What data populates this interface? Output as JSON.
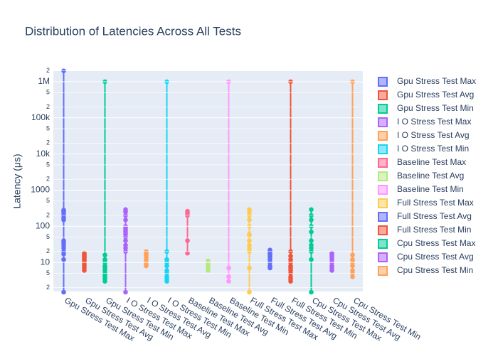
{
  "chart_data": {
    "type": "box",
    "title": "Distribution of Latencies Across All Tests",
    "y_label": "Latency (μs)",
    "log_y": true,
    "grid": true,
    "ylim": [
      1.57,
      1970000
    ],
    "yticks": [
      2,
      5,
      10,
      {
        "value": 20,
        "label": "2"
      },
      {
        "value": 50,
        "label": "5"
      },
      100,
      {
        "value": 200,
        "label": "2"
      },
      {
        "value": 500,
        "label": "5"
      },
      1000,
      {
        "value": 2000,
        "label": "2"
      },
      {
        "value": 5000,
        "label": "5"
      },
      {
        "value": 10000,
        "label": "10k"
      },
      {
        "value": 20000,
        "label": "2"
      },
      {
        "value": 50000,
        "label": "5"
      },
      {
        "value": 100000,
        "label": "100k"
      },
      {
        "value": 200000,
        "label": "2"
      },
      {
        "value": 500000,
        "label": "5"
      },
      {
        "value": 1000000,
        "label": "1M"
      },
      {
        "value": 2000000,
        "label": "2"
      }
    ],
    "series": [
      {
        "name": "Gpu Stress Test Max",
        "color": "#636efa",
        "values": [
          1.5,
          12,
          17,
          20,
          25,
          30,
          35,
          40,
          150,
          170,
          200,
          230,
          260,
          280,
          2000000
        ]
      },
      {
        "name": "Gpu Stress Test Avg",
        "color": "#EF553B",
        "values": [
          6,
          7,
          8,
          9,
          10,
          11,
          12,
          13,
          14,
          15,
          16,
          17,
          18
        ]
      },
      {
        "name": "Gpu Stress Test Min",
        "color": "#00cc96",
        "values": [
          3,
          3.5,
          4,
          4.5,
          5,
          6,
          7,
          8,
          10,
          12,
          16,
          1000000
        ]
      },
      {
        "name": "I O Stress Test Max",
        "color": "#ab63fa",
        "values": [
          1.5,
          20,
          25,
          30,
          40,
          50,
          60,
          70,
          80,
          90,
          100,
          150,
          200,
          250,
          290
        ]
      },
      {
        "name": "I O Stress Test Avg",
        "color": "#FFA15A",
        "values": [
          8,
          9,
          10,
          12,
          14,
          16,
          18,
          20
        ]
      },
      {
        "name": "I O Stress Test Min",
        "color": "#19d3f3",
        "values": [
          3,
          3.5,
          4,
          5,
          6,
          8,
          10,
          12,
          20,
          1000000
        ]
      },
      {
        "name": "Baseline Test Max",
        "color": "#FF6692",
        "values": [
          18,
          40,
          200,
          230,
          260
        ]
      },
      {
        "name": "Baseline Test Avg",
        "color": "#B6E880",
        "values": [
          6,
          7,
          8,
          9,
          10,
          11
        ]
      },
      {
        "name": "Baseline Test Min",
        "color": "#FF97FF",
        "values": [
          3,
          4,
          7,
          1000000
        ]
      },
      {
        "name": "Full Stress Test Max",
        "color": "#FECB52",
        "values": [
          1.5,
          7,
          20,
          25,
          30,
          40,
          55,
          60,
          100,
          150,
          200,
          250,
          290
        ]
      },
      {
        "name": "Full Stress Test Avg",
        "color": "#636efa",
        "values": [
          7,
          8,
          10,
          12,
          14,
          16,
          18,
          20,
          22
        ]
      },
      {
        "name": "Full Stress Test Min",
        "color": "#EF553B",
        "values": [
          3,
          3.5,
          4,
          5,
          6,
          7,
          8,
          10,
          12,
          15,
          20,
          1000000
        ]
      },
      {
        "name": "Cpu Stress Test Max",
        "color": "#00cc96",
        "values": [
          1.5,
          12,
          20,
          25,
          30,
          40,
          70,
          100,
          150,
          200,
          290
        ]
      },
      {
        "name": "Cpu Stress Test Avg",
        "color": "#ab63fa",
        "values": [
          6,
          7,
          8,
          10,
          12,
          14,
          16,
          18
        ]
      },
      {
        "name": "Cpu Stress Test Min",
        "color": "#FFA15A",
        "values": [
          4,
          5,
          6,
          8,
          10,
          12,
          16,
          1000000
        ]
      }
    ]
  }
}
